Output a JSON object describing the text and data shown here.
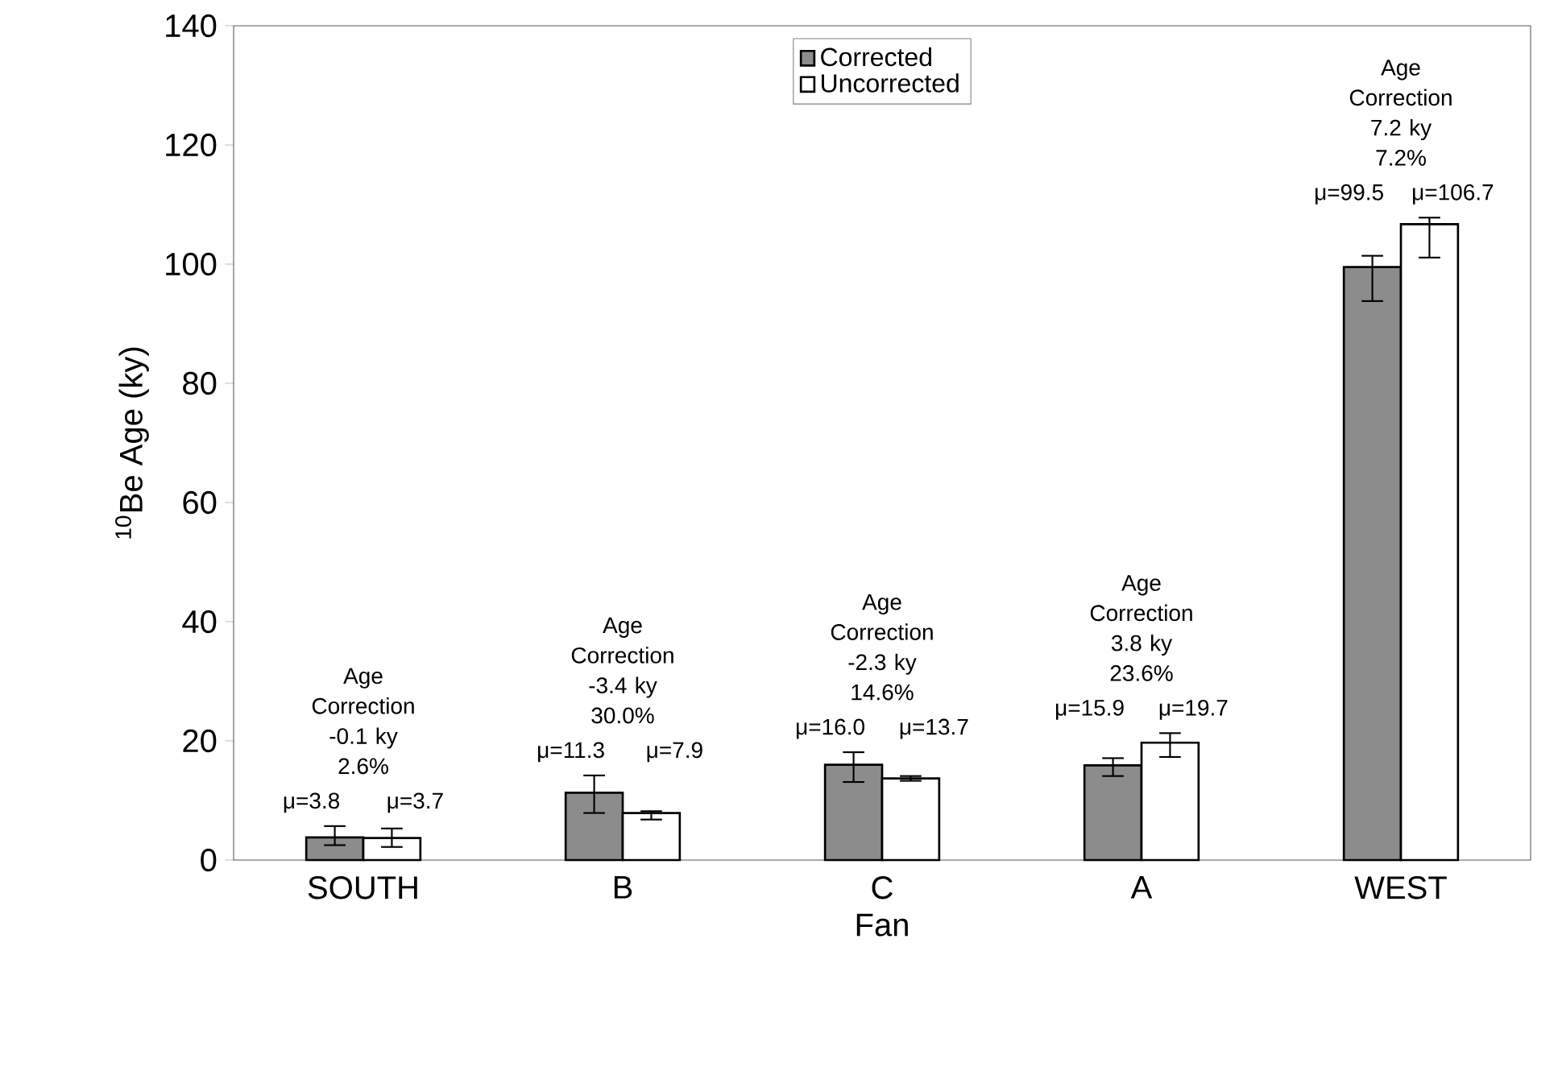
{
  "chart_data": {
    "type": "bar",
    "xlabel": "Fan",
    "ylabel": "$^{10}$Be Age (ky)",
    "categories": [
      "SOUTH",
      "B",
      "C",
      "A",
      "WEST"
    ],
    "series": [
      {
        "name": "Corrected",
        "color": "#8c8c8c",
        "values": [
          3.8,
          11.3,
          16.0,
          15.9,
          99.5
        ],
        "errors": [
          [
            2.5,
            5.7
          ],
          [
            7.9,
            14.2
          ],
          [
            13.1,
            18.1
          ],
          [
            14.1,
            17.1
          ],
          [
            93.8,
            101.4
          ]
        ],
        "value_labels": [
          "μ=3.8",
          "μ=11.3",
          "μ=16.0",
          "μ=15.9",
          "μ=99.5"
        ]
      },
      {
        "name": "Uncorrected",
        "color": "#ffffff",
        "values": [
          3.7,
          7.9,
          13.7,
          19.7,
          106.7
        ],
        "errors": [
          [
            2.2,
            5.3
          ],
          [
            6.8,
            8.2
          ],
          [
            13.3,
            14.1
          ],
          [
            17.3,
            21.3
          ],
          [
            101.1,
            107.8
          ]
        ],
        "value_labels": [
          "μ=3.7",
          "μ=7.9",
          "μ=13.7",
          "μ=19.7",
          "μ=106.7"
        ]
      }
    ],
    "annotations": [
      "Age Correction -0.1 ky 2.6%",
      "Age Correction -3.4 ky 30.0%",
      "Age Correction -2.3 ky 14.6%",
      "Age Correction 3.8 ky 23.6%",
      "Age Correction 7.2 ky 7.2%"
    ],
    "ylim": [
      0,
      140
    ],
    "yticks": [
      0,
      20,
      40,
      60,
      80,
      100,
      120,
      140
    ],
    "legend": "top",
    "grid": false
  }
}
